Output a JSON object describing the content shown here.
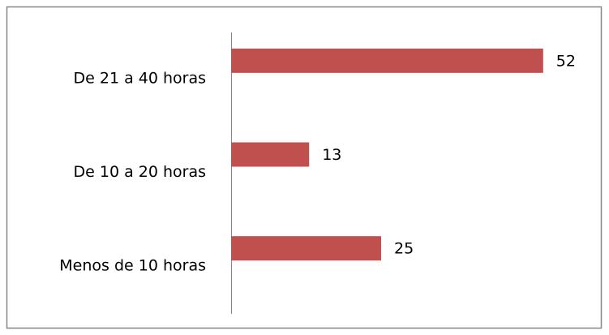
{
  "chart_data": {
    "type": "bar",
    "orientation": "horizontal",
    "categories": [
      "De 21 a 40 horas",
      "De 10 a 20 horas",
      "Menos de 10 horas"
    ],
    "values": [
      52,
      13,
      25
    ],
    "color": "#c0504d",
    "xlim": [
      0,
      60
    ]
  }
}
